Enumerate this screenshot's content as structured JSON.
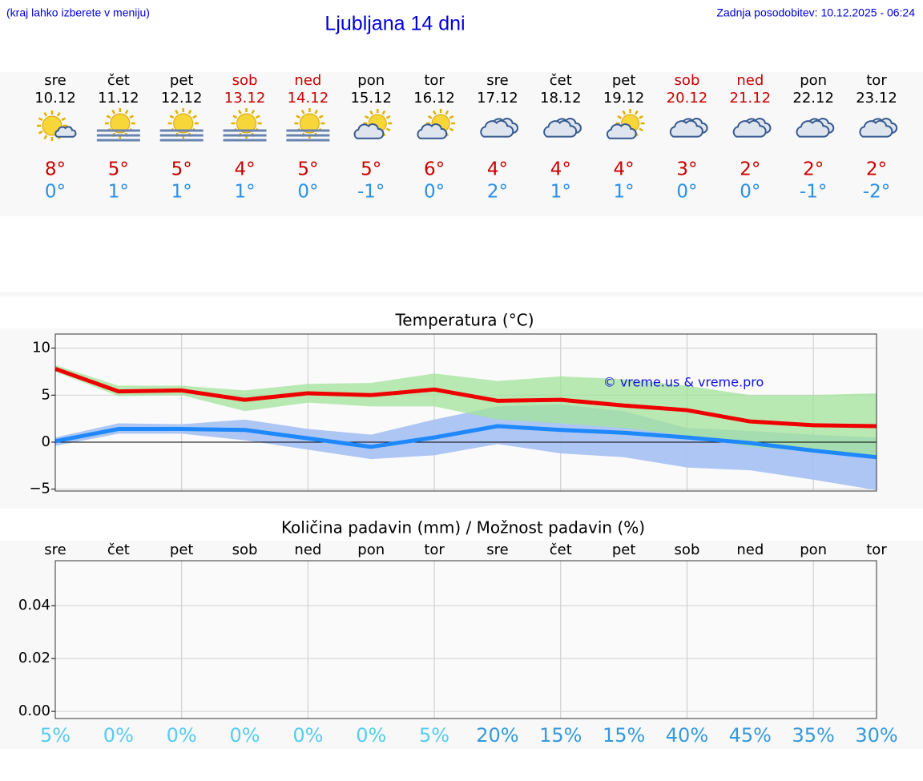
{
  "header": {
    "hint": "(kraj lahko izberete v meniju)",
    "title": "Ljubljana 14 dni",
    "updated": "Zadnja posodobitev: 10.12.2025 - 06:24"
  },
  "days": [
    {
      "name": "sre",
      "date": "10.12",
      "weekend": false,
      "icon": "sun-cloud",
      "max": "8°",
      "min": "0°"
    },
    {
      "name": "čet",
      "date": "11.12",
      "weekend": false,
      "icon": "sun-fog",
      "max": "5°",
      "min": "1°"
    },
    {
      "name": "pet",
      "date": "12.12",
      "weekend": false,
      "icon": "sun-fog",
      "max": "5°",
      "min": "1°"
    },
    {
      "name": "sob",
      "date": "13.12",
      "weekend": true,
      "icon": "sun-fog",
      "max": "4°",
      "min": "1°"
    },
    {
      "name": "ned",
      "date": "14.12",
      "weekend": true,
      "icon": "sun-fog",
      "max": "5°",
      "min": "0°"
    },
    {
      "name": "pon",
      "date": "15.12",
      "weekend": false,
      "icon": "cloud-sun",
      "max": "5°",
      "min": "-1°"
    },
    {
      "name": "tor",
      "date": "16.12",
      "weekend": false,
      "icon": "cloud-sun",
      "max": "6°",
      "min": "0°"
    },
    {
      "name": "sre",
      "date": "17.12",
      "weekend": false,
      "icon": "clouds",
      "max": "4°",
      "min": "2°"
    },
    {
      "name": "čet",
      "date": "18.12",
      "weekend": false,
      "icon": "clouds",
      "max": "4°",
      "min": "1°"
    },
    {
      "name": "pet",
      "date": "19.12",
      "weekend": false,
      "icon": "cloud-sun",
      "max": "4°",
      "min": "1°"
    },
    {
      "name": "sob",
      "date": "20.12",
      "weekend": true,
      "icon": "clouds",
      "max": "3°",
      "min": "0°"
    },
    {
      "name": "ned",
      "date": "21.12",
      "weekend": true,
      "icon": "clouds",
      "max": "2°",
      "min": "0°"
    },
    {
      "name": "pon",
      "date": "22.12",
      "weekend": false,
      "icon": "clouds",
      "max": "2°",
      "min": "-1°"
    },
    {
      "name": "tor",
      "date": "23.12",
      "weekend": false,
      "icon": "clouds",
      "max": "2°",
      "min": "-2°"
    }
  ],
  "chart_data": [
    {
      "type": "line",
      "title": "Temperatura (°C)",
      "annotation": "© vreme.us & vreme.pro",
      "categories": [
        null,
        null,
        null,
        null,
        null,
        null,
        null,
        null,
        null,
        null,
        null,
        null,
        null,
        null
      ],
      "ylim": [
        -5.2,
        11.5
      ],
      "yticks": [
        10,
        5,
        0,
        {
          "value": -5,
          "label": "−5"
        }
      ],
      "grid": true,
      "xgrid_every": 2,
      "zero_line": true,
      "series": [
        {
          "color": "#1e88ff",
          "range_color": "#a9c3f2",
          "values": [
            0.1,
            1.4,
            1.4,
            1.3,
            0.4,
            -0.5,
            0.5,
            1.7,
            1.3,
            1.0,
            0.5,
            -0.1,
            -0.9,
            -1.6
          ],
          "range_low": [
            -0.4,
            0.9,
            0.9,
            0.2,
            -0.8,
            -1.8,
            -1.4,
            -0.2,
            -1.2,
            -1.6,
            -2.7,
            -3.0,
            -4.0,
            -5.1
          ],
          "range_high": [
            0.5,
            2.0,
            1.9,
            2.4,
            1.4,
            0.8,
            2.4,
            3.8,
            4.0,
            3.3,
            1.5,
            1.2,
            0.8,
            0.5
          ]
        },
        {
          "color": "#ee0000",
          "range_color": "#a3e39a",
          "values": [
            7.8,
            5.4,
            5.5,
            4.5,
            5.2,
            5.0,
            5.6,
            4.4,
            4.5,
            3.9,
            3.4,
            2.2,
            1.8,
            1.7
          ],
          "range_low": [
            7.5,
            4.9,
            5.0,
            3.3,
            4.2,
            3.8,
            3.8,
            2.4,
            2.0,
            1.5,
            0.7,
            -0.5,
            -1.0,
            -1.5
          ],
          "range_high": [
            8.2,
            6.0,
            6.0,
            5.5,
            6.2,
            6.3,
            7.3,
            6.5,
            7.0,
            6.7,
            6.0,
            5.0,
            5.0,
            5.2
          ]
        }
      ]
    },
    {
      "type": "bar",
      "title": "Količina padavin (mm) / Možnost padavin (%)",
      "categories": [
        "sre",
        "čet",
        "pet",
        "sob",
        "ned",
        "pon",
        "tor",
        "sre",
        "čet",
        "pet",
        "sob",
        "ned",
        "pon",
        "tor"
      ],
      "values": [
        0,
        0,
        0,
        0,
        0,
        0,
        0,
        0,
        0,
        0,
        0,
        0,
        0,
        0
      ],
      "color": "#3366cc",
      "ylim": [
        -0.0027,
        0.057
      ],
      "yticks": [
        {
          "value": 0,
          "label": "0.00"
        },
        {
          "value": 0.02,
          "label": "0.02"
        },
        {
          "value": 0.04,
          "label": "0.04"
        }
      ],
      "grid": true,
      "xgrid_every": 2,
      "chance": {
        "values": [
          5,
          0,
          0,
          0,
          0,
          0,
          5,
          20,
          15,
          15,
          40,
          45,
          35,
          30
        ],
        "value_labels": [
          "5%",
          "0%",
          "0%",
          "0%",
          "0%",
          "0%",
          "5%",
          "20%",
          "15%",
          "15%",
          "40%",
          "45%",
          "35%",
          "30%"
        ],
        "colors": [
          "#55ccee",
          "#55ccee",
          "#55ccee",
          "#55ccee",
          "#55ccee",
          "#55ccee",
          "#55ccee",
          "#3399dd",
          "#3399dd",
          "#3399dd",
          "#3399dd",
          "#3399dd",
          "#3399dd",
          "#3399dd"
        ]
      }
    }
  ]
}
